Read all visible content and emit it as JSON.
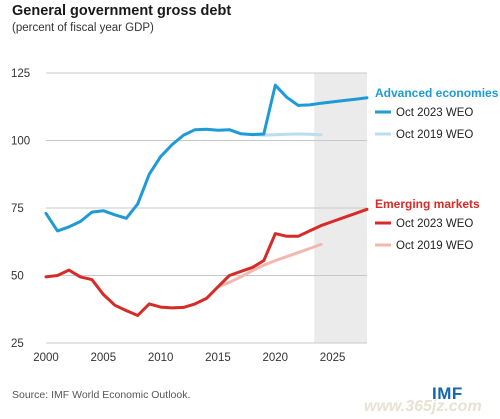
{
  "header": {
    "title": "General government gross debt",
    "subtitle": "(percent of fiscal year GDP)"
  },
  "footer": {
    "source": "Source: IMF World Economic Outlook.",
    "logo_text": "IMF",
    "watermark": "www.365jz.com"
  },
  "chart_data": {
    "type": "line",
    "title": "General government gross debt",
    "subtitle": "(percent of fiscal year GDP)",
    "xlim": [
      2000,
      2028
    ],
    "ylim": [
      25,
      125
    ],
    "xticks": [
      "2000",
      "2005",
      "2010",
      "2015",
      "2020",
      "2025"
    ],
    "yticks": [
      "125",
      "100",
      "75",
      "50",
      "25"
    ],
    "grid": "horizontal",
    "projection_shading": {
      "from": 2023.4,
      "to": 2028,
      "color": "#ebebeb"
    },
    "groups": [
      {
        "label": "Advanced economies",
        "color": "#1e9ad6",
        "series": [
          {
            "name": "Oct 2023 WEO",
            "color": "#1e9ad6",
            "x": [
              2000,
              2001,
              2002,
              2003,
              2004,
              2005,
              2006,
              2007,
              2008,
              2009,
              2010,
              2011,
              2012,
              2013,
              2014,
              2015,
              2016,
              2017,
              2018,
              2019,
              2020,
              2021,
              2022,
              2023,
              2024,
              2025,
              2026,
              2027,
              2028
            ],
            "values": [
              73,
              66.5,
              68,
              70,
              73.5,
              74,
              72.5,
              71.2,
              76.5,
              87.5,
              94,
              98.5,
              102,
              104,
              104.2,
              103.8,
              104,
              102.5,
              102.2,
              102.4,
              120.5,
              116,
              113,
              113.2,
              113.8,
              114.3,
              114.8,
              115.3,
              115.8
            ]
          },
          {
            "name": "Oct 2019 WEO",
            "color": "#bcdcf0",
            "x": [
              2018,
              2019,
              2020,
              2021,
              2022,
              2023,
              2024
            ],
            "values": [
              102.2,
              102,
              102.1,
              102.3,
              102.4,
              102.3,
              102.1
            ]
          }
        ]
      },
      {
        "label": "Emerging markets",
        "color": "#d62b27",
        "series": [
          {
            "name": "Oct 2023 WEO",
            "color": "#d62b27",
            "x": [
              2000,
              2001,
              2002,
              2003,
              2004,
              2005,
              2006,
              2007,
              2008,
              2009,
              2010,
              2011,
              2012,
              2013,
              2014,
              2015,
              2016,
              2017,
              2018,
              2019,
              2020,
              2021,
              2022,
              2023,
              2024,
              2025,
              2026,
              2027,
              2028
            ],
            "values": [
              49.5,
              50,
              52,
              49.5,
              48.5,
              43,
              39,
              37,
              35.2,
              39.5,
              38.3,
              38,
              38.2,
              39.5,
              41.5,
              45.8,
              50,
              51.5,
              53,
              55.5,
              65.5,
              64.5,
              64.5,
              66.5,
              68.5,
              70,
              71.5,
              73,
              74.5
            ]
          },
          {
            "name": "Oct 2019 WEO",
            "color": "#f2b8b0",
            "x": [
              2015,
              2016,
              2017,
              2018,
              2019,
              2020,
              2021,
              2022,
              2023,
              2024
            ],
            "values": [
              45.8,
              47.5,
              49.5,
              51.8,
              53.8,
              55.5,
              57,
              58.5,
              60,
              61.5
            ]
          }
        ]
      }
    ]
  }
}
